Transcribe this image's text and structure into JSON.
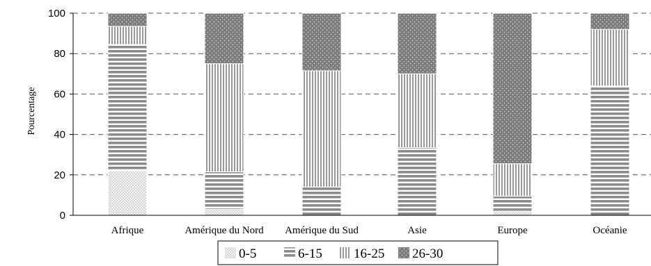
{
  "chart_data": {
    "type": "bar",
    "stacked": true,
    "ylabel": "Pourcentage",
    "ylim": [
      0,
      100
    ],
    "yticks": [
      0,
      20,
      40,
      60,
      80,
      100
    ],
    "grid": "horizontal-dashed",
    "legend_position": "bottom",
    "categories": [
      "Afrique",
      "Amérique du Nord",
      "Amérique du Sud",
      "Asie",
      "Europe",
      "Océanie"
    ],
    "series": [
      {
        "name": "0-5",
        "pattern": "dots",
        "values": [
          22,
          3,
          0,
          0,
          2,
          0
        ]
      },
      {
        "name": "6-15",
        "pattern": "horizontal-lines",
        "values": [
          62.5,
          18.5,
          14,
          33.5,
          7.5,
          64
        ]
      },
      {
        "name": "16-25",
        "pattern": "vertical-lines",
        "values": [
          9,
          53.5,
          57.5,
          36.5,
          16,
          28
        ]
      },
      {
        "name": "26-30",
        "pattern": "dotted-dark",
        "values": [
          6.5,
          25,
          28.5,
          30,
          74.5,
          8
        ]
      }
    ]
  }
}
